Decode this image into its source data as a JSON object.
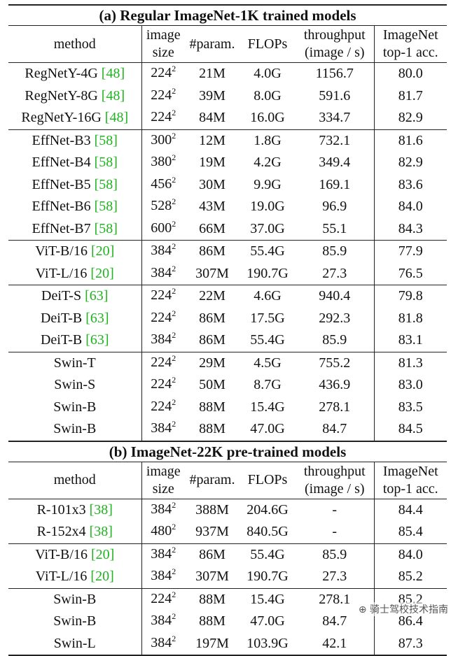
{
  "sections": [
    {
      "title": "(a) Regular ImageNet-1K trained models",
      "header": [
        "method",
        "image size",
        "#param.",
        "FLOPs",
        "throughput (image / s)",
        "ImageNet top-1 acc."
      ],
      "groups": [
        [
          {
            "method": "RegNetY-4G",
            "cite": "48",
            "size": "224",
            "param": "21M",
            "flops": "4.0G",
            "throughput": "1156.7",
            "acc": "80.0"
          },
          {
            "method": "RegNetY-8G",
            "cite": "48",
            "size": "224",
            "param": "39M",
            "flops": "8.0G",
            "throughput": "591.6",
            "acc": "81.7"
          },
          {
            "method": "RegNetY-16G",
            "cite": "48",
            "size": "224",
            "param": "84M",
            "flops": "16.0G",
            "throughput": "334.7",
            "acc": "82.9"
          }
        ],
        [
          {
            "method": "EffNet-B3",
            "cite": "58",
            "size": "300",
            "param": "12M",
            "flops": "1.8G",
            "throughput": "732.1",
            "acc": "81.6"
          },
          {
            "method": "EffNet-B4",
            "cite": "58",
            "size": "380",
            "param": "19M",
            "flops": "4.2G",
            "throughput": "349.4",
            "acc": "82.9"
          },
          {
            "method": "EffNet-B5",
            "cite": "58",
            "size": "456",
            "param": "30M",
            "flops": "9.9G",
            "throughput": "169.1",
            "acc": "83.6"
          },
          {
            "method": "EffNet-B6",
            "cite": "58",
            "size": "528",
            "param": "43M",
            "flops": "19.0G",
            "throughput": "96.9",
            "acc": "84.0"
          },
          {
            "method": "EffNet-B7",
            "cite": "58",
            "size": "600",
            "param": "66M",
            "flops": "37.0G",
            "throughput": "55.1",
            "acc": "84.3"
          }
        ],
        [
          {
            "method": "ViT-B/16",
            "cite": "20",
            "size": "384",
            "param": "86M",
            "flops": "55.4G",
            "throughput": "85.9",
            "acc": "77.9"
          },
          {
            "method": "ViT-L/16",
            "cite": "20",
            "size": "384",
            "param": "307M",
            "flops": "190.7G",
            "throughput": "27.3",
            "acc": "76.5"
          }
        ],
        [
          {
            "method": "DeiT-S",
            "cite": "63",
            "size": "224",
            "param": "22M",
            "flops": "4.6G",
            "throughput": "940.4",
            "acc": "79.8"
          },
          {
            "method": "DeiT-B",
            "cite": "63",
            "size": "224",
            "param": "86M",
            "flops": "17.5G",
            "throughput": "292.3",
            "acc": "81.8"
          },
          {
            "method": "DeiT-B",
            "cite": "63",
            "size": "384",
            "param": "86M",
            "flops": "55.4G",
            "throughput": "85.9",
            "acc": "83.1"
          }
        ],
        [
          {
            "method": "Swin-T",
            "cite": "",
            "size": "224",
            "param": "29M",
            "flops": "4.5G",
            "throughput": "755.2",
            "acc": "81.3"
          },
          {
            "method": "Swin-S",
            "cite": "",
            "size": "224",
            "param": "50M",
            "flops": "8.7G",
            "throughput": "436.9",
            "acc": "83.0"
          },
          {
            "method": "Swin-B",
            "cite": "",
            "size": "224",
            "param": "88M",
            "flops": "15.4G",
            "throughput": "278.1",
            "acc": "83.5"
          },
          {
            "method": "Swin-B",
            "cite": "",
            "size": "384",
            "param": "88M",
            "flops": "47.0G",
            "throughput": "84.7",
            "acc": "84.5"
          }
        ]
      ]
    },
    {
      "title": "(b) ImageNet-22K pre-trained models",
      "header": [
        "method",
        "image size",
        "#param.",
        "FLOPs",
        "throughput (image / s)",
        "ImageNet top-1 acc."
      ],
      "groups": [
        [
          {
            "method": "R-101x3",
            "cite": "38",
            "size": "384",
            "param": "388M",
            "flops": "204.6G",
            "throughput": "-",
            "acc": "84.4"
          },
          {
            "method": "R-152x4",
            "cite": "38",
            "size": "480",
            "param": "937M",
            "flops": "840.5G",
            "throughput": "-",
            "acc": "85.4"
          }
        ],
        [
          {
            "method": "ViT-B/16",
            "cite": "20",
            "size": "384",
            "param": "86M",
            "flops": "55.4G",
            "throughput": "85.9",
            "acc": "84.0"
          },
          {
            "method": "ViT-L/16",
            "cite": "20",
            "size": "384",
            "param": "307M",
            "flops": "190.7G",
            "throughput": "27.3",
            "acc": "85.2"
          }
        ],
        [
          {
            "method": "Swin-B",
            "cite": "",
            "size": "224",
            "param": "88M",
            "flops": "15.4G",
            "throughput": "278.1",
            "acc": "85.2"
          },
          {
            "method": "Swin-B",
            "cite": "",
            "size": "384",
            "param": "88M",
            "flops": "47.0G",
            "throughput": "84.7",
            "acc": "86.4"
          },
          {
            "method": "Swin-L",
            "cite": "",
            "size": "384",
            "param": "197M",
            "flops": "103.9G",
            "throughput": "42.1",
            "acc": "87.3"
          }
        ]
      ]
    }
  ],
  "size_superscript": "2",
  "watermark": "⊕ 骑士驾校技术指南",
  "colors": {
    "citation": "#1fb31f"
  }
}
